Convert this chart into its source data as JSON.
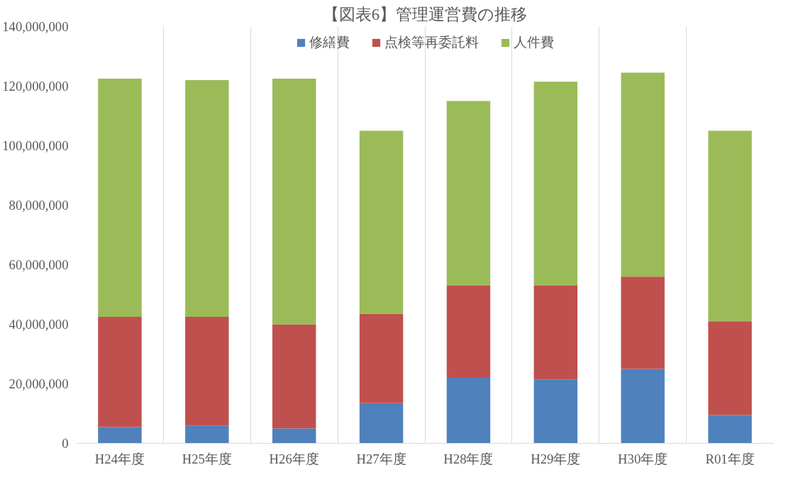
{
  "chart_data": {
    "type": "bar",
    "title": "【図表6】管理運営費の推移",
    "stacked": true,
    "categories": [
      "H24年度",
      "H25年度",
      "H26年度",
      "H27年度",
      "H28年度",
      "H29年度",
      "H30年度",
      "R01年度"
    ],
    "series": [
      {
        "name": "修繕費",
        "color": "#4f81bd",
        "values": [
          5500000,
          6000000,
          5000000,
          13500000,
          22000000,
          21500000,
          25000000,
          9500000
        ]
      },
      {
        "name": "点検等再委託料",
        "color": "#c0504d",
        "values": [
          37000000,
          36500000,
          35000000,
          30000000,
          31000000,
          31500000,
          31000000,
          31500000
        ]
      },
      {
        "name": "人件費",
        "color": "#9bbb59",
        "values": [
          80000000,
          79500000,
          82500000,
          61500000,
          62000000,
          68500000,
          68500000,
          64000000
        ]
      }
    ],
    "ylim": [
      0,
      140000000
    ],
    "yticks": [
      {
        "value": 0,
        "label": "0"
      },
      {
        "value": 20000000,
        "label": "20,000,000"
      },
      {
        "value": 40000000,
        "label": "40,000,000"
      },
      {
        "value": 60000000,
        "label": "60,000,000"
      },
      {
        "value": 80000000,
        "label": "80,000,000"
      },
      {
        "value": 100000000,
        "label": "100,000,000"
      },
      {
        "value": 120000000,
        "label": "120,000,000"
      },
      {
        "value": 140000000,
        "label": "140,000,000"
      }
    ],
    "grid": "x",
    "legend": "top"
  }
}
